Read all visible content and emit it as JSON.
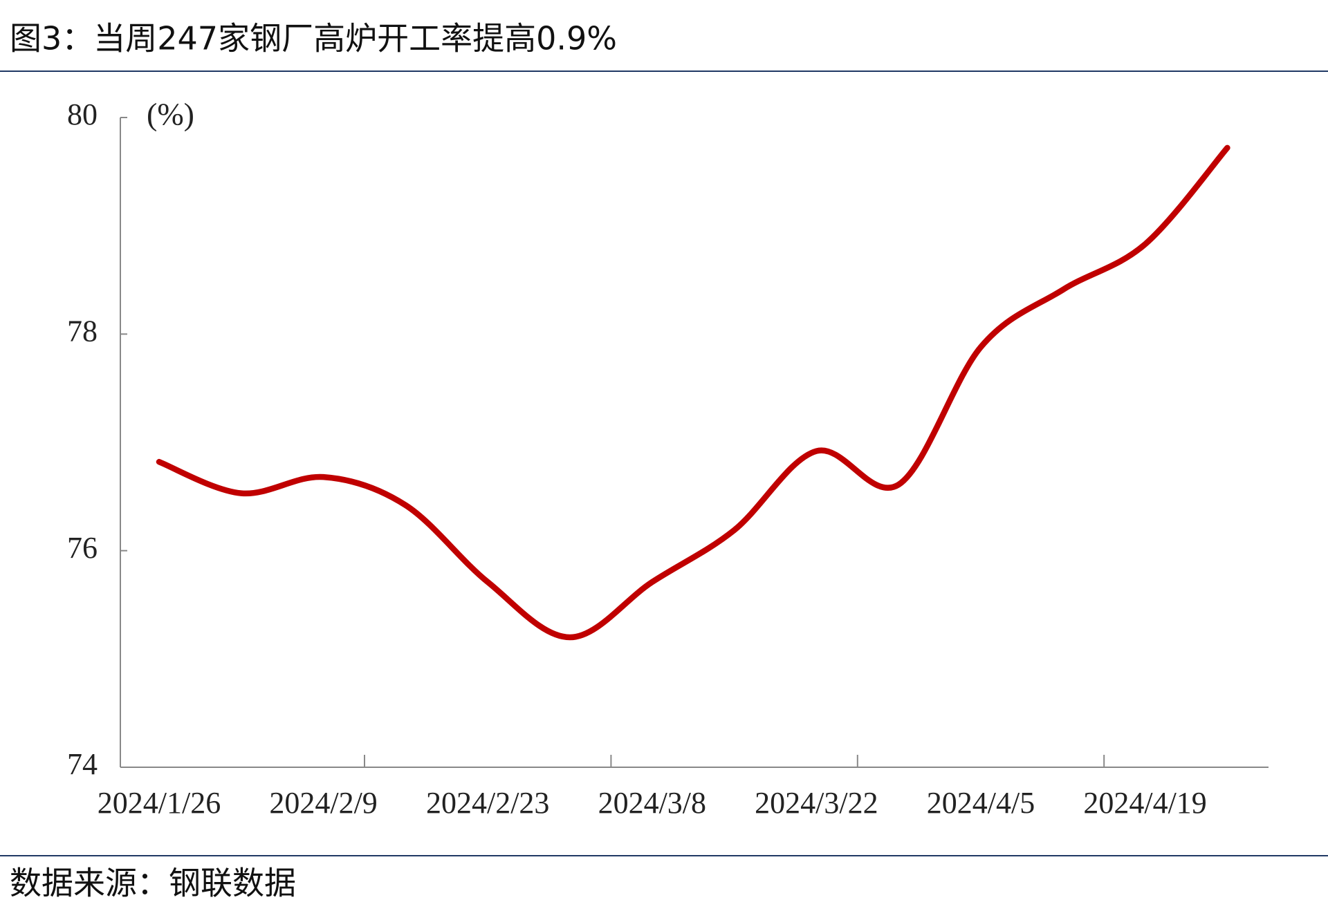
{
  "chart_data": {
    "type": "line",
    "title": "图3：当周247家钢厂高炉开工率提高0.9%",
    "y_label": "(%)",
    "source": "数据来源：钢联数据",
    "categories": [
      "2024/1/26",
      null,
      "2024/2/9",
      null,
      "2024/2/23",
      null,
      "2024/3/8",
      null,
      "2024/3/22",
      null,
      "2024/4/5",
      null,
      "2024/4/19",
      null
    ],
    "series": [
      {
        "color": "#c00000",
        "values": [
          76.82,
          76.53,
          76.68,
          76.42,
          75.71,
          75.2,
          75.71,
          76.19,
          76.92,
          76.61,
          77.88,
          78.41,
          78.83,
          79.72
        ]
      }
    ],
    "ylim": [
      74,
      80
    ],
    "yticks": [
      74,
      76,
      78,
      80
    ],
    "grid": false
  }
}
